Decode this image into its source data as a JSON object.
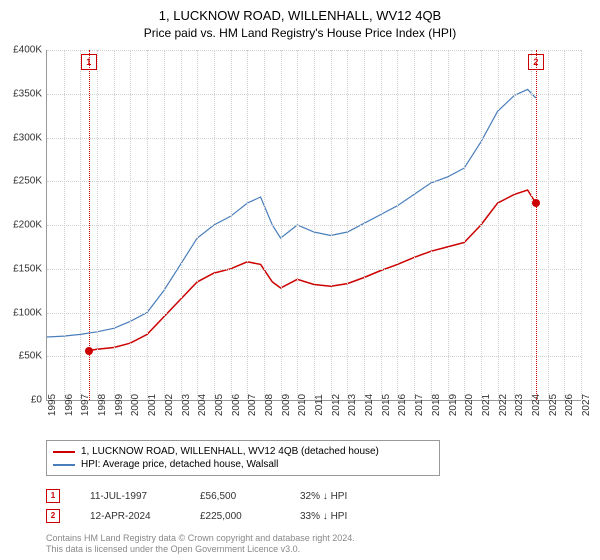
{
  "title": "1, LUCKNOW ROAD, WILLENHALL, WV12 4QB",
  "subtitle": "Price paid vs. HM Land Registry's House Price Index (HPI)",
  "chart": {
    "type": "line",
    "background_color": "#ffffff",
    "grid_color": "#d0d0d0",
    "axis_color": "#999999",
    "y_axis": {
      "min": 0,
      "max": 400000,
      "step": 50000,
      "labels": [
        "£0",
        "£50K",
        "£100K",
        "£150K",
        "£200K",
        "£250K",
        "£300K",
        "£350K",
        "£400K"
      ],
      "fontsize": 10
    },
    "x_axis": {
      "min": 1995,
      "max": 2027,
      "step": 1,
      "labels": [
        "1995",
        "1996",
        "1997",
        "1998",
        "1999",
        "2000",
        "2001",
        "2002",
        "2003",
        "2004",
        "2005",
        "2006",
        "2007",
        "2008",
        "2009",
        "2010",
        "2011",
        "2012",
        "2013",
        "2014",
        "2015",
        "2016",
        "2017",
        "2018",
        "2019",
        "2020",
        "2021",
        "2022",
        "2023",
        "2024",
        "2025",
        "2026",
        "2027"
      ],
      "fontsize": 10
    },
    "series": [
      {
        "name": "property",
        "label": "1, LUCKNOW ROAD, WILLENHALL, WV12 4QB (detached house)",
        "color": "#cc0000",
        "line_width": 1.5,
        "points": [
          [
            1997.5,
            56500
          ],
          [
            1998,
            58000
          ],
          [
            1999,
            60000
          ],
          [
            2000,
            65000
          ],
          [
            2001,
            75000
          ],
          [
            2002,
            95000
          ],
          [
            2003,
            115000
          ],
          [
            2004,
            135000
          ],
          [
            2005,
            145000
          ],
          [
            2006,
            150000
          ],
          [
            2007,
            158000
          ],
          [
            2007.8,
            155000
          ],
          [
            2008.5,
            135000
          ],
          [
            2009,
            128000
          ],
          [
            2010,
            138000
          ],
          [
            2011,
            132000
          ],
          [
            2012,
            130000
          ],
          [
            2013,
            133000
          ],
          [
            2014,
            140000
          ],
          [
            2015,
            148000
          ],
          [
            2016,
            155000
          ],
          [
            2017,
            163000
          ],
          [
            2018,
            170000
          ],
          [
            2019,
            175000
          ],
          [
            2020,
            180000
          ],
          [
            2021,
            200000
          ],
          [
            2022,
            225000
          ],
          [
            2023,
            235000
          ],
          [
            2023.8,
            240000
          ],
          [
            2024.3,
            225000
          ]
        ]
      },
      {
        "name": "hpi",
        "label": "HPI: Average price, detached house, Walsall",
        "color": "#4a7ebb",
        "line_width": 1.2,
        "points": [
          [
            1995,
            72000
          ],
          [
            1996,
            73000
          ],
          [
            1997,
            75000
          ],
          [
            1998,
            78000
          ],
          [
            1999,
            82000
          ],
          [
            2000,
            90000
          ],
          [
            2001,
            100000
          ],
          [
            2002,
            125000
          ],
          [
            2003,
            155000
          ],
          [
            2004,
            185000
          ],
          [
            2005,
            200000
          ],
          [
            2006,
            210000
          ],
          [
            2007,
            225000
          ],
          [
            2007.8,
            232000
          ],
          [
            2008.5,
            200000
          ],
          [
            2009,
            185000
          ],
          [
            2010,
            200000
          ],
          [
            2011,
            192000
          ],
          [
            2012,
            188000
          ],
          [
            2013,
            192000
          ],
          [
            2014,
            202000
          ],
          [
            2015,
            212000
          ],
          [
            2016,
            222000
          ],
          [
            2017,
            235000
          ],
          [
            2018,
            248000
          ],
          [
            2019,
            255000
          ],
          [
            2020,
            265000
          ],
          [
            2021,
            295000
          ],
          [
            2022,
            330000
          ],
          [
            2023,
            348000
          ],
          [
            2023.8,
            355000
          ],
          [
            2024.3,
            345000
          ]
        ]
      }
    ],
    "markers": [
      {
        "n": "1",
        "year": 1997.5,
        "value": 56500,
        "color": "#cc0000"
      },
      {
        "n": "2",
        "year": 2024.3,
        "value": 225000,
        "color": "#cc0000"
      }
    ]
  },
  "legend": {
    "items": [
      {
        "color": "#cc0000",
        "label": "1, LUCKNOW ROAD, WILLENHALL, WV12 4QB (detached house)"
      },
      {
        "color": "#4a7ebb",
        "label": "HPI: Average price, detached house, Walsall"
      }
    ]
  },
  "transactions": [
    {
      "n": "1",
      "date": "11-JUL-1997",
      "price": "£56,500",
      "diff": "32% ↓ HPI",
      "color": "#cc0000"
    },
    {
      "n": "2",
      "date": "12-APR-2024",
      "price": "£225,000",
      "diff": "33% ↓ HPI",
      "color": "#cc0000"
    }
  ],
  "copyright": {
    "line1": "Contains HM Land Registry data © Crown copyright and database right 2024.",
    "line2": "This data is licensed under the Open Government Licence v3.0."
  }
}
